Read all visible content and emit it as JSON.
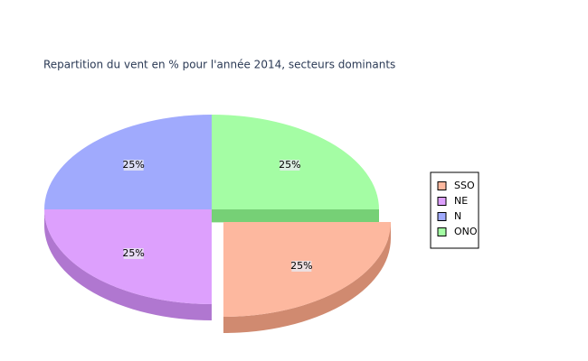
{
  "chart_data": {
    "type": "pie",
    "title": "Repartition du vent en % pour l'année 2014, secteurs dominants",
    "categories": [
      "SSO",
      "NE",
      "N",
      "ONO"
    ],
    "values": [
      25,
      25,
      25,
      25
    ],
    "value_labels": [
      "25%",
      "25%",
      "25%",
      "25%"
    ],
    "colors": [
      "#fdb89f",
      "#dda0fd",
      "#a0aafd",
      "#a4fda4"
    ],
    "side_colors": [
      "#d08a70",
      "#b077d0",
      "#7880d0",
      "#76d076"
    ],
    "legend": "right"
  }
}
